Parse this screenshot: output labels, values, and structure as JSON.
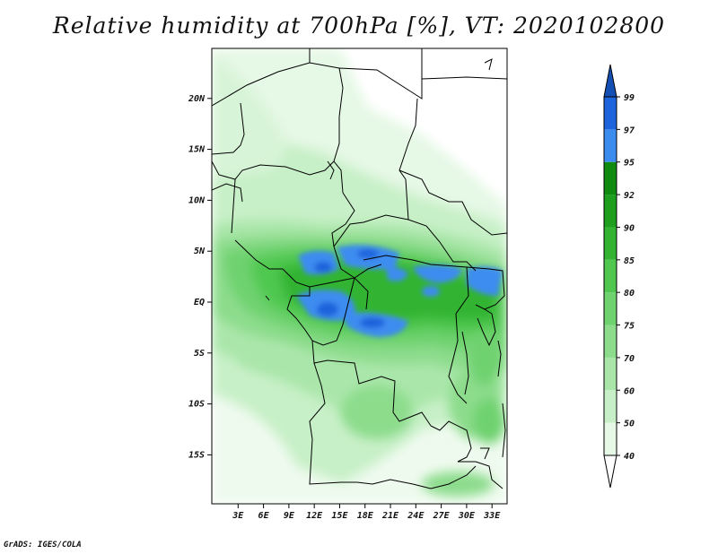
{
  "title": "Relative humidity at 700hPa [%], VT: 2020102800",
  "credit": "GrADS: IGES/COLA",
  "map": {
    "lat_ticks": [
      {
        "value": 20,
        "label": "20N"
      },
      {
        "value": 15,
        "label": "15N"
      },
      {
        "value": 10,
        "label": "10N"
      },
      {
        "value": 5,
        "label": "5N"
      },
      {
        "value": 0,
        "label": "EQ"
      },
      {
        "value": -5,
        "label": "5S"
      },
      {
        "value": -10,
        "label": "10S"
      },
      {
        "value": -15,
        "label": "15S"
      }
    ],
    "lon_ticks": [
      {
        "value": 3,
        "label": "3E"
      },
      {
        "value": 6,
        "label": "6E"
      },
      {
        "value": 9,
        "label": "9E"
      },
      {
        "value": 12,
        "label": "12E"
      },
      {
        "value": 15,
        "label": "15E"
      },
      {
        "value": 18,
        "label": "18E"
      },
      {
        "value": 21,
        "label": "21E"
      },
      {
        "value": 24,
        "label": "24E"
      },
      {
        "value": 27,
        "label": "27E"
      },
      {
        "value": 30,
        "label": "30E"
      },
      {
        "value": 33,
        "label": "33E"
      }
    ]
  },
  "colorbar": {
    "levels": [
      "40",
      "50",
      "60",
      "70",
      "75",
      "80",
      "85",
      "90",
      "92",
      "95",
      "97",
      "99"
    ],
    "colors": [
      "#ffffff",
      "#e6f8e6",
      "#c8f0c8",
      "#aae6aa",
      "#8cdc8c",
      "#6ed26e",
      "#50c850",
      "#32b432",
      "#1ea01e",
      "#0f8c0f",
      "#3c8cf0",
      "#1e64dc",
      "#1450b4"
    ]
  }
}
